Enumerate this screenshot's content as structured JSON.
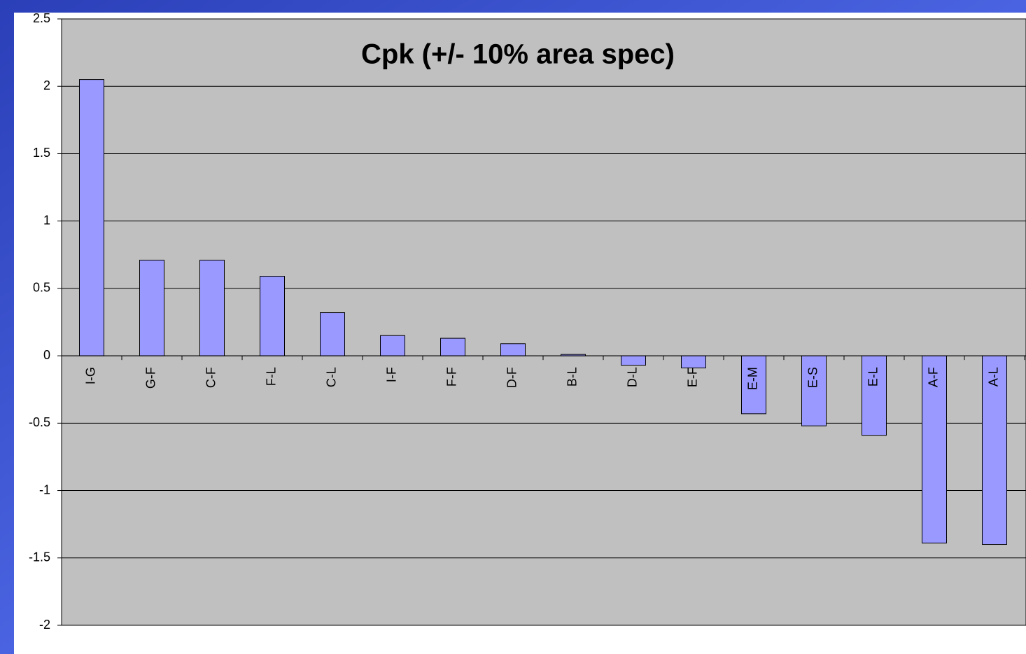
{
  "chart_data": {
    "type": "bar",
    "title": "Cpk (+/- 10% area spec)",
    "categories": [
      "I-G",
      "G-F",
      "C-F",
      "F-L",
      "C-L",
      "I-F",
      "F-F",
      "D-F",
      "B-L",
      "D-L",
      "E-F",
      "E-M",
      "E-S",
      "E-L",
      "A-F",
      "A-L"
    ],
    "values": [
      2.05,
      0.71,
      0.71,
      0.59,
      0.32,
      0.15,
      0.13,
      0.09,
      0.01,
      -0.07,
      -0.09,
      -0.43,
      -0.52,
      -0.59,
      -1.39,
      -1.4
    ],
    "color": "#9999ff",
    "ylim": [
      -2,
      2.5
    ],
    "yticks": [
      2.5,
      2,
      1.5,
      1,
      0.5,
      0,
      -0.5,
      -1,
      -1.5,
      -2
    ],
    "grid": true
  }
}
